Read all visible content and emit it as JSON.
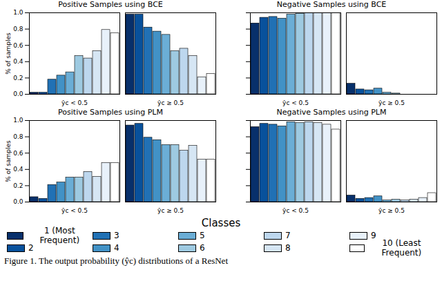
{
  "chart_data": [
    {
      "type": "bar",
      "title": "Positive Samples using BCE",
      "y_label": "% of samples",
      "categories": [
        "ŷc < 0.5",
        "ŷc ≥ 0.5"
      ],
      "ylim": [
        0,
        1
      ],
      "yticks": [
        {
          "value": 0,
          "label": "0.0"
        },
        {
          "value": 0.2,
          "label": "0.2"
        },
        {
          "value": 0.4,
          "label": "0.4"
        },
        {
          "value": 0.6,
          "label": "0.6"
        },
        {
          "value": 0.8,
          "label": "0.8"
        },
        {
          "value": 1,
          "label": "1.0"
        }
      ],
      "series": [
        {
          "name": "1 (Most Frequent)",
          "color": "#08306b",
          "values": [
            0.02,
            0.98
          ]
        },
        {
          "name": "2",
          "color": "#08519c",
          "values": [
            0.02,
            0.98
          ]
        },
        {
          "name": "3",
          "color": "#2171b5",
          "values": [
            0.18,
            0.82
          ]
        },
        {
          "name": "4",
          "color": "#4292c6",
          "values": [
            0.23,
            0.77
          ]
        },
        {
          "name": "5",
          "color": "#6baed6",
          "values": [
            0.27,
            0.73
          ]
        },
        {
          "name": "6",
          "color": "#9ecae1",
          "values": [
            0.47,
            0.53
          ]
        },
        {
          "name": "7",
          "color": "#bdd7ee",
          "values": [
            0.44,
            0.56
          ]
        },
        {
          "name": "8",
          "color": "#d6e6f4",
          "values": [
            0.53,
            0.47
          ]
        },
        {
          "name": "9",
          "color": "#e8f1fa",
          "values": [
            0.79,
            0.21
          ]
        },
        {
          "name": "10 (Least Frequent)",
          "color": "#ffffff",
          "values": [
            0.75,
            0.25
          ]
        }
      ]
    },
    {
      "type": "bar",
      "title": "Negative Samples using BCE",
      "categories": [
        "ŷc < 0.5",
        "ŷc ≥ 0.5"
      ],
      "ylim": [
        0,
        1
      ],
      "tick_labels": "x",
      "yticks": [
        0,
        0.2,
        0.4,
        0.6,
        0.8,
        1
      ],
      "series": [
        {
          "name": "1 (Most Frequent)",
          "color": "#08306b",
          "values": [
            0.87,
            0.13
          ]
        },
        {
          "name": "2",
          "color": "#08519c",
          "values": [
            0.94,
            0.06
          ]
        },
        {
          "name": "3",
          "color": "#2171b5",
          "values": [
            0.95,
            0.05
          ]
        },
        {
          "name": "4",
          "color": "#4292c6",
          "values": [
            0.93,
            0.07
          ]
        },
        {
          "name": "5",
          "color": "#6baed6",
          "values": [
            0.98,
            0.02
          ]
        },
        {
          "name": "6",
          "color": "#9ecae1",
          "values": [
            0.99,
            0.01
          ]
        },
        {
          "name": "7",
          "color": "#bdd7ee",
          "values": [
            1,
            0
          ]
        },
        {
          "name": "8",
          "color": "#d6e6f4",
          "values": [
            1,
            0
          ]
        },
        {
          "name": "9",
          "color": "#e8f1fa",
          "values": [
            1,
            0
          ]
        },
        {
          "name": "10 (Least Frequent)",
          "color": "#ffffff",
          "values": [
            1,
            0
          ]
        }
      ]
    },
    {
      "type": "bar",
      "title": "Positive Samples using PLM",
      "y_label": "% of samples",
      "categories": [
        "ŷc < 0.5",
        "ŷc ≥ 0.5"
      ],
      "ylim": [
        0,
        1
      ],
      "yticks": [
        {
          "value": 0,
          "label": "0.0"
        },
        {
          "value": 0.2,
          "label": "0.2"
        },
        {
          "value": 0.4,
          "label": "0.4"
        },
        {
          "value": 0.6,
          "label": "0.6"
        },
        {
          "value": 0.8,
          "label": "0.8"
        },
        {
          "value": 1,
          "label": "1.0"
        }
      ],
      "series": [
        {
          "name": "1 (Most Frequent)",
          "color": "#08306b",
          "values": [
            0.06,
            0.94
          ]
        },
        {
          "name": "2",
          "color": "#08519c",
          "values": [
            0.04,
            0.96
          ]
        },
        {
          "name": "3",
          "color": "#2171b5",
          "values": [
            0.21,
            0.79
          ]
        },
        {
          "name": "4",
          "color": "#4292c6",
          "values": [
            0.24,
            0.76
          ]
        },
        {
          "name": "5",
          "color": "#6baed6",
          "values": [
            0.3,
            0.7
          ]
        },
        {
          "name": "6",
          "color": "#9ecae1",
          "values": [
            0.3,
            0.7
          ]
        },
        {
          "name": "7",
          "color": "#bdd7ee",
          "values": [
            0.37,
            0.63
          ]
        },
        {
          "name": "8",
          "color": "#d6e6f4",
          "values": [
            0.31,
            0.69
          ]
        },
        {
          "name": "9",
          "color": "#e8f1fa",
          "values": [
            0.48,
            0.52
          ]
        },
        {
          "name": "10 (Least Frequent)",
          "color": "#ffffff",
          "values": [
            0.48,
            0.52
          ]
        }
      ]
    },
    {
      "type": "bar",
      "title": "Negative Samples using PLM",
      "categories": [
        "ŷc < 0.5",
        "ŷc ≥ 0.5"
      ],
      "ylim": [
        0,
        1
      ],
      "tick_labels": "x",
      "yticks": [
        0,
        0.2,
        0.4,
        0.6,
        0.8,
        1
      ],
      "series": [
        {
          "name": "1 (Most Frequent)",
          "color": "#08306b",
          "values": [
            0.92,
            0.08
          ]
        },
        {
          "name": "2",
          "color": "#08519c",
          "values": [
            0.96,
            0.04
          ]
        },
        {
          "name": "3",
          "color": "#2171b5",
          "values": [
            0.95,
            0.05
          ]
        },
        {
          "name": "4",
          "color": "#4292c6",
          "values": [
            0.93,
            0.07
          ]
        },
        {
          "name": "5",
          "color": "#6baed6",
          "values": [
            0.98,
            0.02
          ]
        },
        {
          "name": "6",
          "color": "#9ecae1",
          "values": [
            0.97,
            0.03
          ]
        },
        {
          "name": "7",
          "color": "#bdd7ee",
          "values": [
            0.98,
            0.02
          ]
        },
        {
          "name": "8",
          "color": "#d6e6f4",
          "values": [
            0.97,
            0.03
          ]
        },
        {
          "name": "9",
          "color": "#e8f1fa",
          "values": [
            0.95,
            0.05
          ]
        },
        {
          "name": "10 (Least Frequent)",
          "color": "#ffffff",
          "values": [
            0.89,
            0.11
          ]
        }
      ]
    }
  ],
  "legend_title": "Classes",
  "caption": "Figure 1. The output probability (ŷc) distributions of a ResNet"
}
